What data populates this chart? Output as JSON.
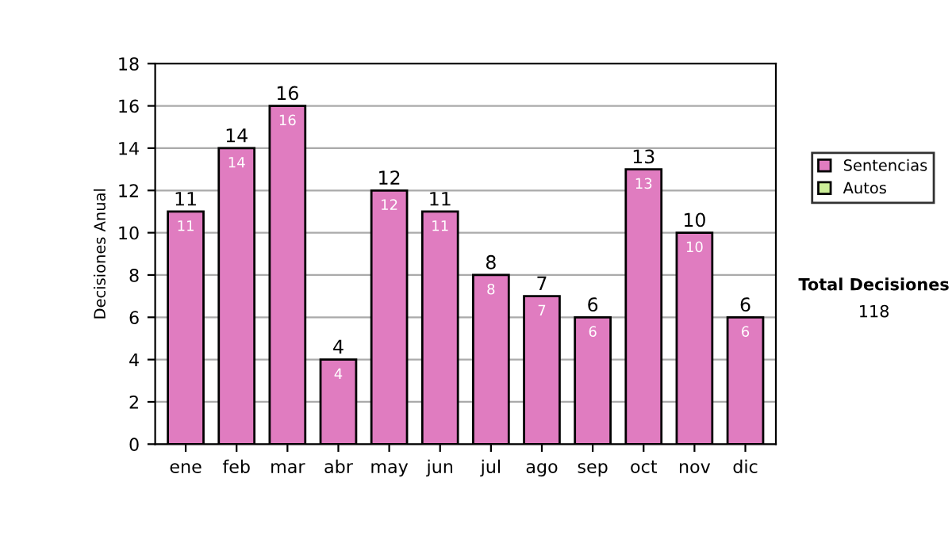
{
  "chart_data": {
    "type": "bar",
    "stacked": true,
    "ylabel": "Decisiones Anual",
    "categories": [
      "ene",
      "feb",
      "mar",
      "abr",
      "may",
      "jun",
      "jul",
      "ago",
      "sep",
      "oct",
      "nov",
      "dic"
    ],
    "series": [
      {
        "name": "Sentencias",
        "color": "#e07cc0",
        "values": [
          11,
          14,
          16,
          4,
          12,
          11,
          8,
          7,
          6,
          13,
          10,
          6
        ],
        "value_labels": [
          "11",
          "14",
          "16",
          "4",
          "12",
          "11",
          "8",
          "7",
          "6",
          "13",
          "10",
          "6"
        ]
      },
      {
        "name": "Autos",
        "color": "#ccee99",
        "values": [
          null,
          null,
          null,
          null,
          null,
          null,
          null,
          null,
          null,
          null,
          null,
          null
        ]
      }
    ],
    "totals": [
      "11",
      "14",
      "16",
      "4",
      "12",
      "11",
      "8",
      "7",
      "6",
      "13",
      "10",
      "6"
    ],
    "ylim": [
      0,
      18
    ],
    "yticks": [
      0,
      2,
      4,
      6,
      8,
      10,
      12,
      14,
      16,
      18
    ],
    "grid": "y",
    "legend": "right",
    "annotations": [
      "Total Decisiones",
      "118"
    ]
  }
}
